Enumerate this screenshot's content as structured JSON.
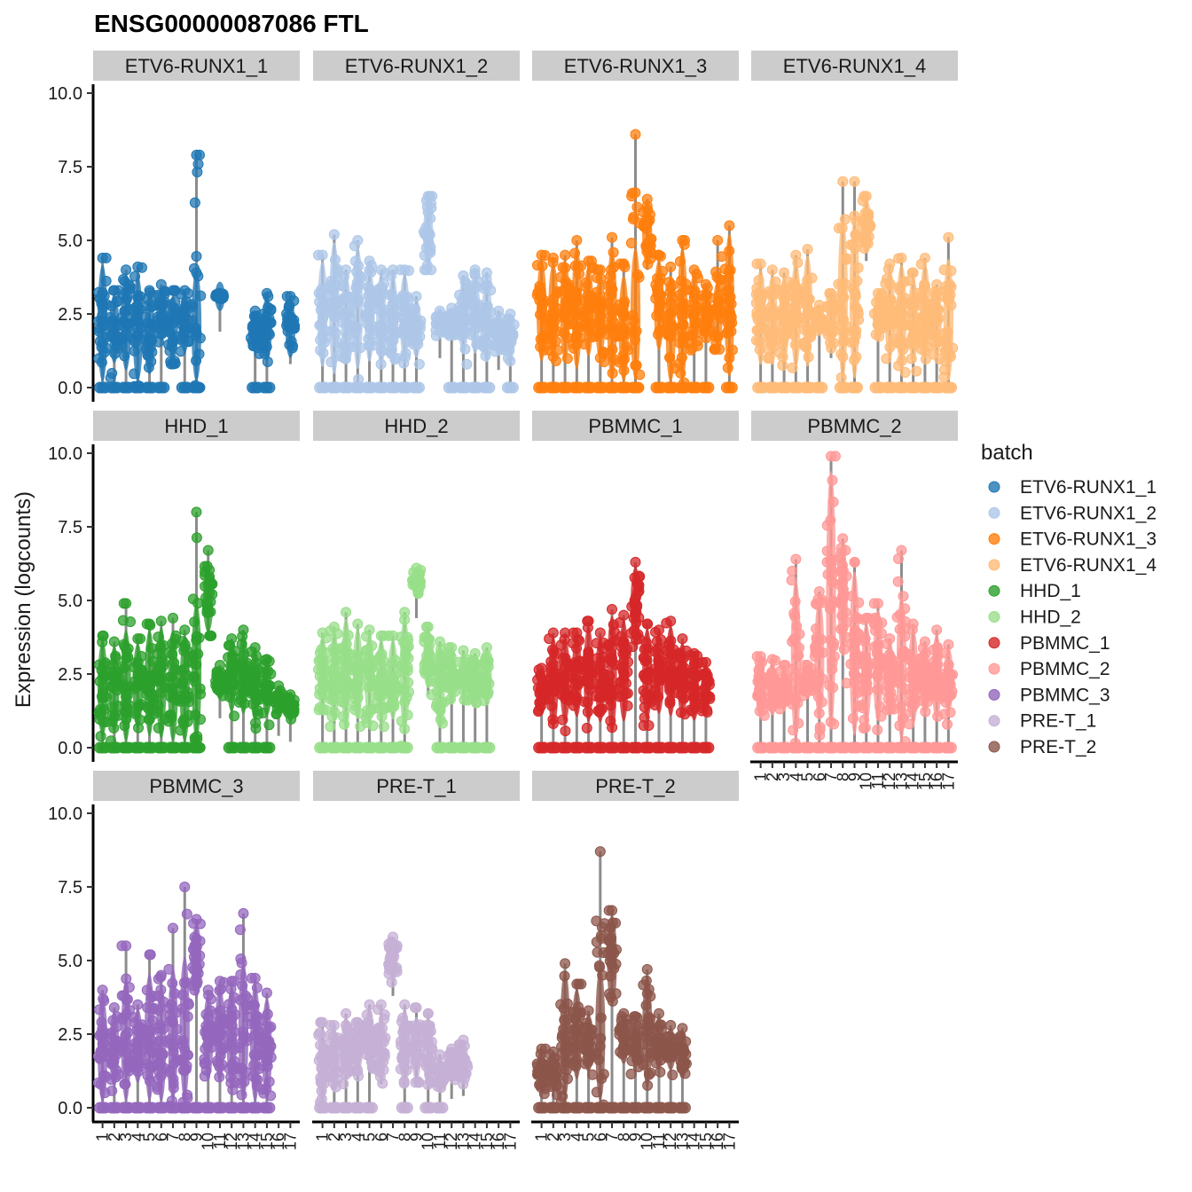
{
  "chart_data": {
    "type": "violin",
    "title": "ENSG00000087086 FTL",
    "ylabel": "Expression (logcounts)",
    "xlabel": "",
    "ylim": [
      0,
      10
    ],
    "yticks": [
      0.0,
      2.5,
      5.0,
      7.5,
      10.0
    ],
    "ytick_labels": [
      "0.0",
      "2.5",
      "5.0",
      "7.5",
      "10.0"
    ],
    "categories": [
      "1",
      "2",
      "3",
      "4",
      "5",
      "6",
      "7",
      "8",
      "9",
      "10",
      "11",
      "12",
      "13",
      "14",
      "15",
      "16",
      "17"
    ],
    "legend": {
      "title": "batch",
      "placement": "right",
      "entries": [
        "ETV6-RUNX1_1",
        "ETV6-RUNX1_2",
        "ETV6-RUNX1_3",
        "ETV6-RUNX1_4",
        "HHD_1",
        "HHD_2",
        "PBMMC_1",
        "PBMMC_2",
        "PBMMC_3",
        "PRE-T_1",
        "PRE-T_2"
      ]
    },
    "panels": [
      {
        "name": "ETV6-RUNX1_1",
        "color": "#1f77b4",
        "max": [
          4.4,
          3.3,
          4.0,
          4.1,
          3.3,
          3.5,
          3.3,
          3.3,
          7.9,
          null,
          3.2,
          null,
          null,
          2.6,
          3.2,
          null,
          3.1
        ],
        "median": [
          2.2,
          2.0,
          2.2,
          2.0,
          1.8,
          2.5,
          2.0,
          2.2,
          2.1,
          null,
          3.1,
          null,
          null,
          1.9,
          2.0,
          null,
          2.0
        ],
        "zeros": [
          true,
          true,
          true,
          true,
          true,
          true,
          false,
          true,
          true,
          false,
          false,
          false,
          false,
          true,
          true,
          false,
          false
        ]
      },
      {
        "name": "ETV6-RUNX1_2",
        "color": "#aec7e8",
        "max": [
          4.5,
          5.2,
          4.0,
          5.0,
          4.3,
          4.0,
          4.0,
          4.0,
          3.1,
          6.5,
          2.6,
          2.7,
          3.8,
          4.0,
          3.9,
          2.6,
          2.5
        ],
        "median": [
          2.5,
          2.7,
          2.4,
          2.7,
          2.5,
          2.3,
          2.3,
          2.4,
          2.0,
          5.2,
          2.2,
          2.2,
          2.4,
          2.5,
          2.3,
          1.8,
          1.7
        ],
        "zeros": [
          true,
          true,
          true,
          true,
          true,
          true,
          true,
          true,
          true,
          false,
          false,
          true,
          true,
          true,
          true,
          false,
          true
        ]
      },
      {
        "name": "ETV6-RUNX1_3",
        "color": "#ff7f0e",
        "max": [
          4.5,
          4.4,
          4.5,
          5.0,
          4.3,
          4.0,
          5.1,
          4.2,
          8.6,
          6.4,
          4.5,
          4.1,
          5.0,
          4.0,
          3.5,
          5.0,
          5.5
        ],
        "median": [
          2.6,
          2.6,
          2.6,
          2.7,
          2.6,
          2.4,
          2.5,
          2.0,
          2.5,
          5.2,
          2.8,
          2.0,
          2.5,
          2.6,
          2.5,
          2.5,
          2.8
        ],
        "zeros": [
          true,
          true,
          true,
          true,
          true,
          true,
          true,
          true,
          true,
          false,
          true,
          true,
          true,
          true,
          true,
          false,
          true
        ]
      },
      {
        "name": "ETV6-RUNX1_4",
        "color": "#ffbb78",
        "max": [
          4.2,
          4.0,
          3.9,
          4.5,
          4.7,
          2.8,
          3.2,
          7.0,
          7.0,
          6.5,
          3.2,
          4.2,
          4.4,
          3.9,
          4.4,
          3.5,
          5.1
        ],
        "median": [
          2.4,
          2.3,
          2.3,
          2.5,
          2.6,
          2.3,
          2.2,
          3.0,
          3.0,
          5.5,
          2.4,
          2.5,
          2.4,
          2.3,
          2.6,
          2.2,
          2.3
        ],
        "zeros": [
          true,
          true,
          true,
          true,
          true,
          true,
          false,
          true,
          true,
          false,
          true,
          true,
          true,
          true,
          true,
          true,
          true
        ]
      },
      {
        "name": "HHD_1",
        "color": "#2ca02c",
        "max": [
          3.8,
          3.6,
          4.9,
          3.7,
          4.2,
          4.3,
          4.4,
          4.0,
          8.0,
          6.7,
          2.8,
          3.7,
          4.0,
          3.4,
          3.0,
          2.1,
          1.8
        ],
        "median": [
          2.0,
          2.0,
          2.1,
          2.1,
          2.2,
          2.2,
          2.1,
          2.0,
          2.6,
          5.0,
          2.2,
          2.4,
          2.5,
          2.1,
          2.0,
          1.6,
          1.4
        ],
        "zeros": [
          true,
          true,
          true,
          true,
          true,
          true,
          true,
          true,
          true,
          false,
          false,
          true,
          true,
          true,
          true,
          false,
          false
        ]
      },
      {
        "name": "HHD_2",
        "color": "#98df8a",
        "max": [
          3.9,
          4.1,
          4.6,
          4.2,
          4.0,
          3.8,
          3.8,
          4.6,
          6.1,
          4.1,
          3.6,
          3.4,
          3.3,
          3.2,
          3.4,
          null,
          null
        ],
        "median": [
          2.5,
          2.4,
          2.5,
          2.5,
          2.4,
          2.3,
          2.3,
          2.5,
          5.6,
          3.0,
          2.1,
          2.4,
          2.4,
          2.3,
          2.4,
          null,
          null
        ],
        "zeros": [
          true,
          true,
          true,
          true,
          true,
          true,
          true,
          true,
          false,
          false,
          true,
          true,
          true,
          true,
          true,
          false,
          false
        ]
      },
      {
        "name": "PBMMC_1",
        "color": "#d62728",
        "max": [
          2.7,
          3.9,
          3.9,
          3.9,
          4.3,
          3.9,
          4.7,
          4.5,
          6.3,
          4.2,
          4.0,
          4.3,
          3.7,
          3.2,
          2.9,
          null,
          null
        ],
        "median": [
          1.9,
          2.2,
          2.3,
          2.4,
          2.5,
          2.3,
          2.5,
          2.6,
          4.8,
          2.5,
          2.5,
          2.6,
          2.3,
          2.0,
          2.0,
          null,
          null
        ],
        "zeros": [
          true,
          true,
          true,
          true,
          true,
          true,
          true,
          true,
          true,
          true,
          true,
          true,
          true,
          true,
          true,
          false,
          false
        ]
      },
      {
        "name": "PBMMC_2",
        "color": "#ff9896",
        "max": [
          3.1,
          3.0,
          2.8,
          6.4,
          2.8,
          5.3,
          9.9,
          7.1,
          6.3,
          4.4,
          4.9,
          3.7,
          6.7,
          4.2,
          3.6,
          4.0,
          3.5
        ],
        "median": [
          2.0,
          2.0,
          2.0,
          3.0,
          2.2,
          3.0,
          5.0,
          5.0,
          3.2,
          2.5,
          2.8,
          2.4,
          2.7,
          2.4,
          2.3,
          2.4,
          2.3
        ],
        "zeros": [
          true,
          true,
          true,
          true,
          true,
          true,
          true,
          true,
          true,
          true,
          true,
          true,
          true,
          true,
          true,
          true,
          true
        ]
      },
      {
        "name": "PBMMC_3",
        "color": "#9467bd",
        "max": [
          4.0,
          3.4,
          5.5,
          3.5,
          5.2,
          4.5,
          6.1,
          7.5,
          6.4,
          4.0,
          4.3,
          4.3,
          6.6,
          4.4,
          3.9,
          null,
          null
        ],
        "median": [
          2.0,
          2.0,
          2.3,
          2.1,
          2.4,
          2.2,
          2.5,
          2.7,
          5.0,
          2.4,
          2.5,
          2.4,
          2.6,
          2.2,
          2.0,
          null,
          null
        ],
        "zeros": [
          true,
          true,
          true,
          true,
          true,
          true,
          true,
          true,
          true,
          true,
          true,
          true,
          true,
          true,
          true,
          false,
          false
        ]
      },
      {
        "name": "PRE-T_1",
        "color": "#c5b0d5",
        "max": [
          2.9,
          2.8,
          3.2,
          2.9,
          3.5,
          3.5,
          5.8,
          3.5,
          3.4,
          3.2,
          1.8,
          2.0,
          2.3,
          null,
          null,
          null,
          null
        ],
        "median": [
          1.4,
          1.6,
          2.0,
          2.0,
          2.4,
          2.0,
          5.0,
          2.0,
          2.0,
          1.9,
          1.2,
          1.5,
          1.6,
          null,
          null,
          null,
          null
        ],
        "zeros": [
          true,
          true,
          true,
          true,
          true,
          false,
          false,
          true,
          false,
          true,
          true,
          false,
          false,
          false,
          false,
          false,
          false
        ]
      },
      {
        "name": "PRE-T_2",
        "color": "#8c564b",
        "max": [
          2.0,
          1.9,
          4.9,
          4.2,
          3.3,
          8.7,
          6.7,
          3.2,
          3.1,
          4.7,
          3.2,
          2.8,
          2.7,
          null,
          null,
          null,
          null
        ],
        "median": [
          1.3,
          1.2,
          2.5,
          2.5,
          2.2,
          2.5,
          5.0,
          2.3,
          2.2,
          2.6,
          2.2,
          2.0,
          1.8,
          null,
          null,
          null,
          null
        ],
        "zeros": [
          true,
          true,
          true,
          true,
          true,
          true,
          true,
          true,
          true,
          true,
          true,
          true,
          true,
          false,
          false,
          false,
          false
        ]
      }
    ]
  }
}
